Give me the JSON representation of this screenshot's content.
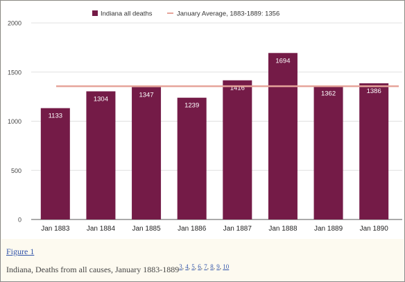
{
  "chart_data": {
    "type": "bar",
    "categories": [
      "Jan 1883",
      "Jan 1884",
      "Jan 1885",
      "Jan 1886",
      "Jan 1887",
      "Jan 1888",
      "Jan 1889",
      "Jan 1890"
    ],
    "series": [
      {
        "name": "Indiana all deaths",
        "values": [
          1133,
          1304,
          1347,
          1239,
          1416,
          1694,
          1362,
          1386
        ]
      }
    ],
    "reference_line": {
      "name": "January Average, 1883-1889: 1356",
      "value": 1356
    },
    "data_labels": [
      "1133",
      "1304",
      "1347",
      "1239",
      "1416",
      "1694",
      "1362",
      "1386"
    ],
    "y_ticks": [
      0,
      500,
      1000,
      1500,
      2000
    ],
    "ylim": [
      0,
      2000
    ],
    "grid": true,
    "legend_position": "top",
    "colors": {
      "bar": "#741b47",
      "average_line": "#e6a49a",
      "grid": "#e0e0e0"
    }
  },
  "caption": {
    "link_text": "Figure 1",
    "text": "Indiana, Deaths from all causes, January 1883-1889",
    "refs": [
      "3",
      "4",
      "5",
      "6",
      "7",
      "8",
      "9",
      "10"
    ]
  }
}
